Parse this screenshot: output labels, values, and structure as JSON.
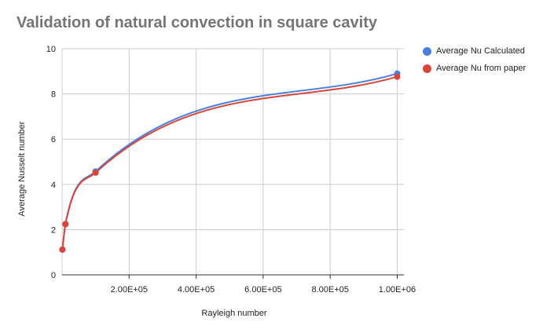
{
  "chart_data": {
    "type": "line",
    "title": "Validation of natural convection in square cavity",
    "xlabel": "Rayleigh number",
    "ylabel": "Average Nusselt number",
    "xlim": [
      0,
      1020000
    ],
    "ylim": [
      0,
      10
    ],
    "x_ticks": [
      200000,
      400000,
      600000,
      800000,
      1000000
    ],
    "x_tick_labels": [
      "2.00E+05",
      "4.00E+05",
      "6.00E+05",
      "8.00E+05",
      "1.00E+06"
    ],
    "y_ticks": [
      0,
      2,
      4,
      6,
      8,
      10
    ],
    "y_tick_labels": [
      "0",
      "2",
      "4",
      "6",
      "8",
      "10"
    ],
    "grid": true,
    "legend_position": "right",
    "series": [
      {
        "name": "Average Nu Calculated",
        "color": "#4a7fdd",
        "x": [
          1000,
          10000,
          100000,
          1000000
        ],
        "values": [
          1.12,
          2.25,
          4.57,
          8.9
        ]
      },
      {
        "name": "Average Nu from paper",
        "color": "#d9453a",
        "x": [
          1000,
          10000,
          100000,
          1000000
        ],
        "values": [
          1.12,
          2.24,
          4.52,
          8.76
        ]
      }
    ]
  }
}
